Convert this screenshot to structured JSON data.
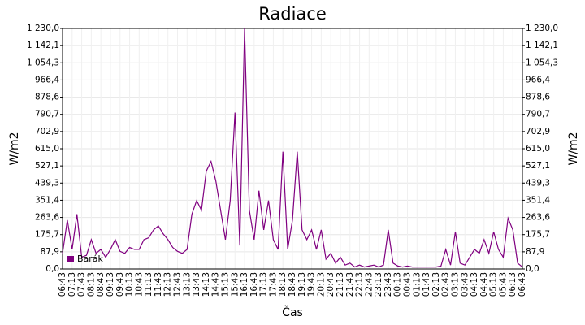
{
  "chart_data": {
    "type": "line",
    "title": "Radiace",
    "y_label": "W/m2",
    "x_label": "Čas",
    "categories": [
      "06:43",
      null,
      "07:13",
      null,
      "07:43",
      null,
      "08:13",
      null,
      "08:43",
      null,
      "09:13",
      null,
      "09:43",
      null,
      "10:13",
      null,
      "10:43",
      null,
      "11:13",
      null,
      "11:43",
      null,
      "12:13",
      null,
      "12:43",
      null,
      "13:13",
      null,
      "13:43",
      null,
      "14:13",
      null,
      "14:43",
      null,
      "15:13",
      null,
      "15:43",
      null,
      "16:13",
      null,
      "16:43",
      null,
      "17:13",
      null,
      "17:43",
      null,
      "18:13",
      null,
      "18:43",
      null,
      "19:13",
      null,
      "19:43",
      null,
      "20:13",
      null,
      "20:43",
      null,
      "21:13",
      null,
      "21:43",
      null,
      "22:13",
      null,
      "22:43",
      null,
      "23:13",
      null,
      "23:43",
      null,
      "00:13",
      null,
      "00:43",
      null,
      "01:13",
      null,
      "01:43",
      null,
      "02:13",
      null,
      "02:43",
      null,
      "03:13",
      null,
      "03:43",
      null,
      "04:13",
      null,
      "04:43",
      null,
      "05:13",
      null,
      "05:43",
      null,
      "06:13",
      null,
      "06:43"
    ],
    "series": [
      {
        "name": "Barák",
        "color": "#800080",
        "values": [
          80,
          250,
          100,
          280,
          60,
          70,
          150,
          80,
          100,
          60,
          100,
          150,
          90,
          80,
          110,
          100,
          100,
          150,
          160,
          200,
          220,
          180,
          150,
          110,
          90,
          80,
          100,
          280,
          350,
          300,
          500,
          550,
          450,
          300,
          150,
          350,
          800,
          120,
          1230,
          300,
          150,
          400,
          200,
          350,
          150,
          100,
          600,
          100,
          250,
          600,
          200,
          150,
          200,
          100,
          200,
          50,
          80,
          30,
          60,
          20,
          30,
          10,
          20,
          10,
          15,
          20,
          10,
          20,
          200,
          30,
          15,
          10,
          15,
          10,
          10,
          10,
          10,
          10,
          10,
          15,
          100,
          20,
          190,
          30,
          20,
          60,
          100,
          80,
          150,
          80,
          190,
          100,
          60,
          260,
          200,
          30,
          10
        ]
      }
    ],
    "ylim": [
      0,
      1230
    ],
    "yticks": [
      {
        "value": 0,
        "label": "0,0"
      },
      {
        "value": 87.86,
        "label": "87,9"
      },
      {
        "value": 175.71,
        "label": "175,7"
      },
      {
        "value": 263.57,
        "label": "263,6"
      },
      {
        "value": 351.43,
        "label": "351,4"
      },
      {
        "value": 439.29,
        "label": "439,3"
      },
      {
        "value": 527.14,
        "label": "527,1"
      },
      {
        "value": 615,
        "label": "615,0"
      },
      {
        "value": 702.86,
        "label": "702,9"
      },
      {
        "value": 790.71,
        "label": "790,7"
      },
      {
        "value": 878.57,
        "label": "878,6"
      },
      {
        "value": 966.43,
        "label": "966,4"
      },
      {
        "value": 1054.29,
        "label": "1 054,3"
      },
      {
        "value": 1142.14,
        "label": "1 142,1"
      },
      {
        "value": 1230,
        "label": "1 230,0"
      }
    ],
    "grid": true,
    "legend": "lower left"
  }
}
